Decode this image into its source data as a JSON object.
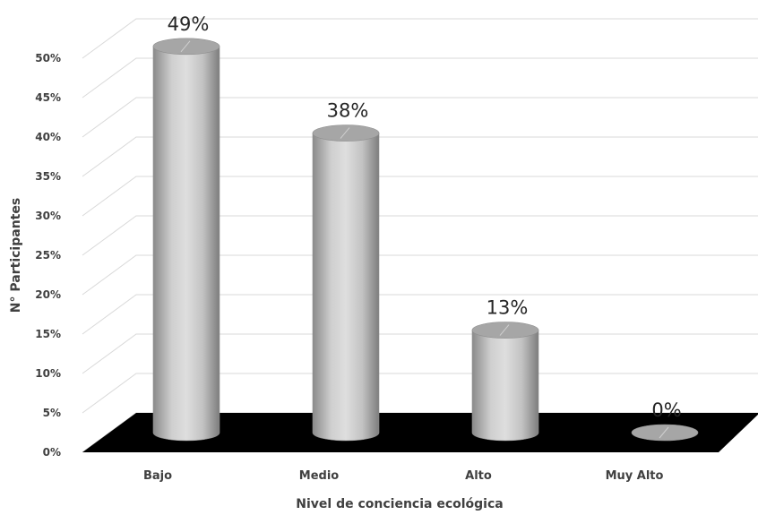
{
  "chart_data": {
    "type": "bar",
    "style": "3d-cylinder",
    "categories": [
      "Bajo",
      "Medio",
      "Alto",
      "Muy Alto"
    ],
    "values": [
      49,
      38,
      13,
      0
    ],
    "data_labels": [
      "49%",
      "38%",
      "13%",
      "0%"
    ],
    "title": "",
    "xlabel": "Nivel de conciencia ecológica",
    "ylabel": "N° Participantes",
    "ylim": [
      0,
      50
    ],
    "y_ticks": [
      "0%",
      "5%",
      "10%",
      "15%",
      "20%",
      "25%",
      "30%",
      "35%",
      "40%",
      "45%",
      "50%"
    ],
    "grid": true,
    "legend": "none",
    "colors": {
      "bar": "#bfbfbf",
      "floor": "#000000",
      "gridline": "#d9d9d9",
      "text": "#404040"
    }
  }
}
